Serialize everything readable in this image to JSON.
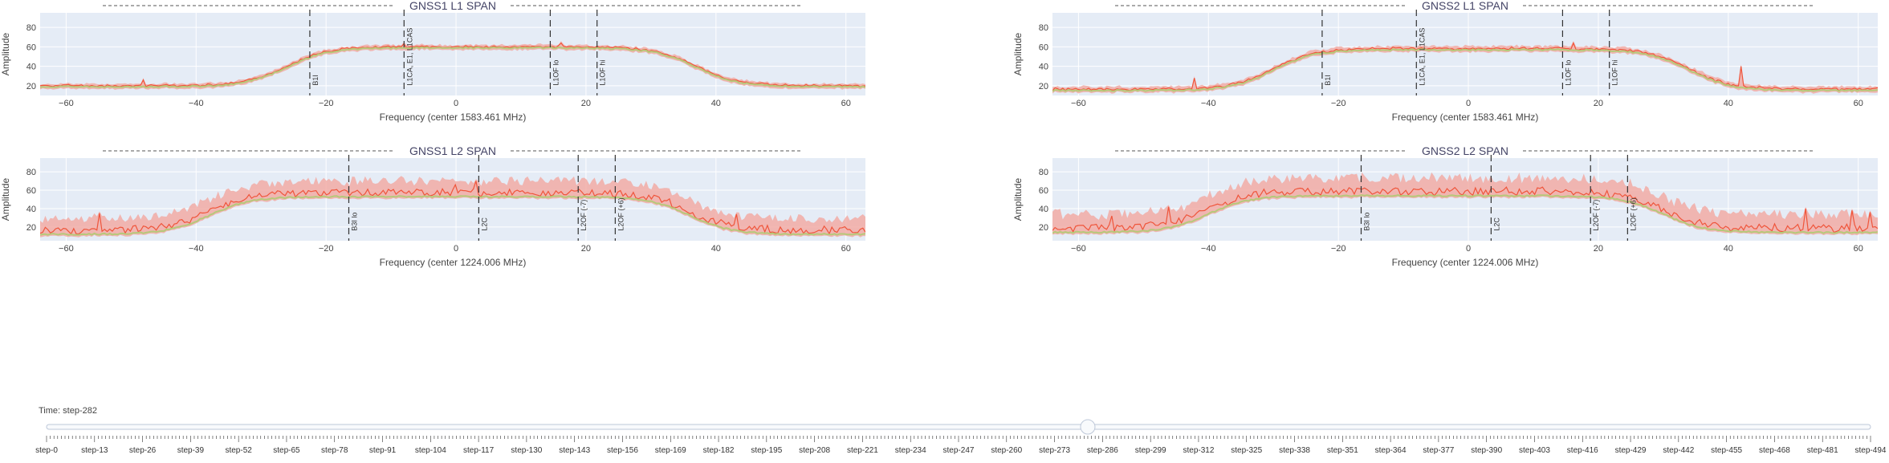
{
  "timeline": {
    "label_prefix": "Time: ",
    "current": "step-282",
    "current_index": 282,
    "max_index": 494,
    "tick_labels": [
      "step-0",
      "step-13",
      "step-26",
      "step-39",
      "step-52",
      "step-65",
      "step-78",
      "step-91",
      "step-104",
      "step-117",
      "step-130",
      "step-143",
      "step-156",
      "step-169",
      "step-182",
      "step-195",
      "step-208",
      "step-221",
      "step-234",
      "step-247",
      "step-260",
      "step-273",
      "step-286",
      "step-299",
      "step-312",
      "step-325",
      "step-338",
      "step-351",
      "step-364",
      "step-377",
      "step-390",
      "step-403",
      "step-416",
      "step-429",
      "step-442",
      "step-455",
      "step-468",
      "step-481",
      "step-494"
    ]
  },
  "colors": {
    "plot_bg": "#e5ecf6",
    "grid": "#ffffff",
    "band": "#f2a7a0",
    "max_line": "#ef553b",
    "avg_line": "#b6c97a",
    "vline": "#333333",
    "title": "#444466",
    "axis_text": "#444444"
  },
  "chart_data": [
    {
      "id": "gnss1-l1",
      "type": "area",
      "title": "GNSS1 L1 SPAN",
      "xlabel": "Frequency (center 1583.461 MHz)",
      "ylabel": "Amplitude",
      "xlim": [
        -64,
        63
      ],
      "ylim": [
        10,
        95
      ],
      "xticks": [
        -60,
        -40,
        -20,
        0,
        20,
        40,
        60
      ],
      "yticks": [
        20,
        40,
        60,
        80
      ],
      "profile": {
        "edges": [
          -26,
          37
        ],
        "floor": 19,
        "plateau": 59,
        "band_width": 4
      },
      "spikes": [
        {
          "x": 16,
          "y": 64
        },
        {
          "x": -8,
          "y": 63
        },
        {
          "x": -48,
          "y": 26
        }
      ],
      "markers": [
        {
          "x": -22.5,
          "label": "B1I"
        },
        {
          "x": -8,
          "label": "L1CA, E1, L1CAS"
        },
        {
          "x": 14.5,
          "label": "L1OF lo"
        },
        {
          "x": 21.7,
          "label": "L1OF hi"
        }
      ]
    },
    {
      "id": "gnss2-l1",
      "type": "area",
      "title": "GNSS2 L1 SPAN",
      "xlabel": "Frequency (center 1583.461 MHz)",
      "ylabel": "Amplitude",
      "xlim": [
        -64,
        63
      ],
      "ylim": [
        10,
        95
      ],
      "xticks": [
        -60,
        -40,
        -20,
        0,
        20,
        40,
        60
      ],
      "yticks": [
        20,
        40,
        60,
        80
      ],
      "profile": {
        "edges": [
          -30,
          34
        ],
        "floor": 15,
        "plateau": 57,
        "band_width": 5
      },
      "spikes": [
        {
          "x": 16,
          "y": 64
        },
        {
          "x": -42,
          "y": 28
        },
        {
          "x": 42,
          "y": 40
        }
      ],
      "markers": [
        {
          "x": -22.5,
          "label": "B1I"
        },
        {
          "x": -8,
          "label": "L1CA, E1, L1CAS"
        },
        {
          "x": 14.5,
          "label": "L1OF lo"
        },
        {
          "x": 21.7,
          "label": "L1OF hi"
        }
      ]
    },
    {
      "id": "gnss1-l2",
      "type": "area",
      "title": "GNSS1 L2 SPAN",
      "xlabel": "Frequency (center 1224.006 MHz)",
      "ylabel": "Amplitude",
      "xlim": [
        -64,
        63
      ],
      "ylim": [
        5,
        95
      ],
      "xticks": [
        -60,
        -40,
        -20,
        0,
        20,
        40,
        60
      ],
      "yticks": [
        20,
        40,
        60,
        80
      ],
      "profile": {
        "edges": [
          -38,
          36
        ],
        "floor": 12,
        "plateau": 53,
        "band_width": 22
      },
      "spikes": [
        {
          "x": 3,
          "y": 70
        },
        {
          "x": 0,
          "y": 66
        },
        {
          "x": 25,
          "y": 58
        },
        {
          "x": -55,
          "y": 35
        },
        {
          "x": 43,
          "y": 34
        }
      ],
      "markers": [
        {
          "x": -16.5,
          "label": "B3I lo"
        },
        {
          "x": 3.5,
          "label": "L2C"
        },
        {
          "x": 18.8,
          "label": "L2OF (-7)"
        },
        {
          "x": 24.5,
          "label": "L2OF (+6)"
        }
      ]
    },
    {
      "id": "gnss2-l2",
      "type": "area",
      "title": "GNSS2 L2 SPAN",
      "xlabel": "Frequency (center 1224.006 MHz)",
      "ylabel": "Amplitude",
      "xlim": [
        -64,
        63
      ],
      "ylim": [
        5,
        95
      ],
      "xticks": [
        -60,
        -40,
        -20,
        0,
        20,
        40,
        60
      ],
      "yticks": [
        20,
        40,
        60,
        80
      ],
      "profile": {
        "edges": [
          -40,
          30
        ],
        "floor": 14,
        "plateau": 54,
        "band_width": 25
      },
      "spikes": [
        {
          "x": -46,
          "y": 42
        },
        {
          "x": -55,
          "y": 32
        },
        {
          "x": 52,
          "y": 40
        },
        {
          "x": 59,
          "y": 38
        },
        {
          "x": 62,
          "y": 36
        },
        {
          "x": 2,
          "y": 62
        }
      ],
      "markers": [
        {
          "x": -16.5,
          "label": "B3I lo"
        },
        {
          "x": 3.5,
          "label": "L2C"
        },
        {
          "x": 18.8,
          "label": "L2OF (-7)"
        },
        {
          "x": 24.5,
          "label": "L2OF (+6)"
        }
      ]
    }
  ]
}
